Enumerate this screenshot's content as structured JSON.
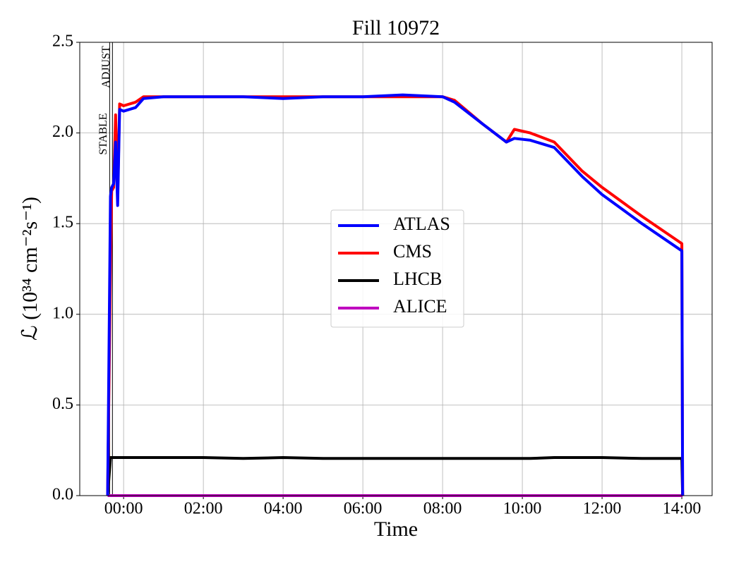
{
  "chart_data": {
    "type": "line",
    "title": "Fill 10972",
    "x_label": "Time",
    "y_label": "ℒ (10³⁴ cm⁻²s⁻¹)",
    "x": [
      -0.4,
      -0.33,
      -0.3,
      -0.25,
      -0.2,
      -0.15,
      -0.1,
      0,
      0.3,
      0.5,
      1,
      2,
      3,
      4,
      5,
      6,
      7,
      8,
      8.3,
      9,
      9.6,
      9.8,
      10.2,
      10.8,
      11.5,
      12,
      13,
      14,
      14.02
    ],
    "series": [
      {
        "name": "ATLAS",
        "color": "#0000ff",
        "values": [
          0,
          1.65,
          1.7,
          1.72,
          1.95,
          1.6,
          2.13,
          2.12,
          2.14,
          2.19,
          2.2,
          2.2,
          2.2,
          2.19,
          2.2,
          2.2,
          2.21,
          2.2,
          2.17,
          2.05,
          1.95,
          1.97,
          1.96,
          1.92,
          1.76,
          1.66,
          1.5,
          1.35,
          0
        ]
      },
      {
        "name": "CMS",
        "color": "#ff0000",
        "values": [
          0,
          1.25,
          1.68,
          1.7,
          2.1,
          1.65,
          2.16,
          2.15,
          2.17,
          2.2,
          2.2,
          2.2,
          2.2,
          2.2,
          2.2,
          2.2,
          2.2,
          2.2,
          2.18,
          2.05,
          1.95,
          2.02,
          2.0,
          1.95,
          1.79,
          1.7,
          1.54,
          1.39,
          0
        ]
      },
      {
        "name": "LHCB",
        "color": "#000000",
        "values": [
          0,
          0.21,
          0.21,
          0.21,
          0.21,
          0.21,
          0.21,
          0.21,
          0.21,
          0.21,
          0.21,
          0.21,
          0.205,
          0.21,
          0.205,
          0.205,
          0.205,
          0.205,
          0.205,
          0.205,
          0.205,
          0.205,
          0.205,
          0.21,
          0.21,
          0.21,
          0.205,
          0.205,
          0
        ]
      },
      {
        "name": "ALICE",
        "color": "#bf00bf",
        "values": [
          0,
          0,
          0,
          0,
          0,
          0,
          0,
          0,
          0,
          0,
          0,
          0,
          0,
          0,
          0,
          0,
          0,
          0,
          0,
          0,
          0,
          0,
          0,
          0,
          0,
          0,
          0,
          0,
          0
        ]
      }
    ],
    "annotations": [
      {
        "text": "STABLE",
        "x": -0.35
      },
      {
        "text": "ADJUST",
        "x": -0.28
      }
    ],
    "xlim": [
      -1.1,
      14.76
    ],
    "ylim": [
      0,
      2.5
    ],
    "xticks": [
      {
        "value": 0,
        "label": "00:00"
      },
      {
        "value": 2,
        "label": "02:00"
      },
      {
        "value": 4,
        "label": "04:00"
      },
      {
        "value": 6,
        "label": "06:00"
      },
      {
        "value": 8,
        "label": "08:00"
      },
      {
        "value": 10,
        "label": "10:00"
      },
      {
        "value": 12,
        "label": "12:00"
      },
      {
        "value": 14,
        "label": "14:00"
      }
    ],
    "yticks": [
      {
        "value": 0,
        "label": "0.0"
      },
      {
        "value": 0.5,
        "label": "0.5"
      },
      {
        "value": 1,
        "label": "1.0"
      },
      {
        "value": 1.5,
        "label": "1.5"
      },
      {
        "value": 2,
        "label": "2.0"
      },
      {
        "value": 2.5,
        "label": "2.5"
      }
    ],
    "grid": true,
    "legend": "center"
  }
}
